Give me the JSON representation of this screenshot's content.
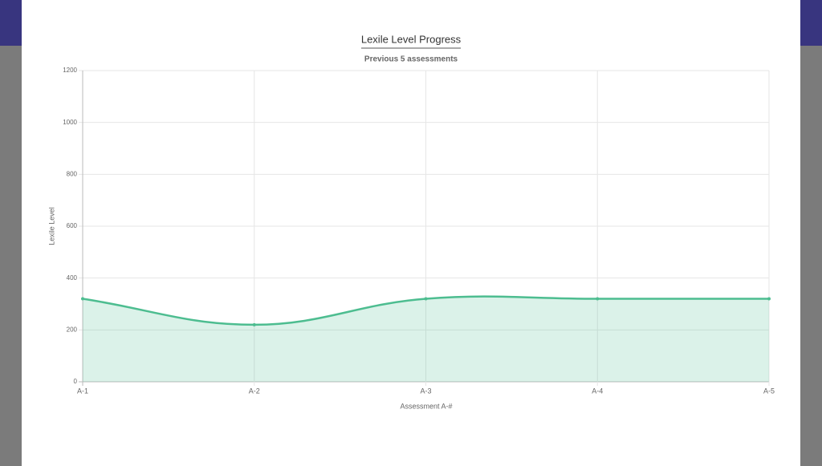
{
  "chart_data": {
    "type": "line",
    "title": "Lexile Level Progress",
    "subtitle": "Previous 5 assessments",
    "x_label": "Assessment A-#",
    "y_label": "Lexile Level",
    "categories": [
      "A-1",
      "A-2",
      "A-3",
      "A-4",
      "A-5"
    ],
    "series": [
      {
        "name": "Lexile Level",
        "color": "#4dbd90",
        "values": [
          320,
          220,
          320,
          320,
          320
        ]
      }
    ],
    "ylim": [
      0,
      1200
    ],
    "yticks": [
      0,
      200,
      400,
      600,
      800,
      1000,
      1200
    ],
    "grid": true,
    "fill": true
  }
}
